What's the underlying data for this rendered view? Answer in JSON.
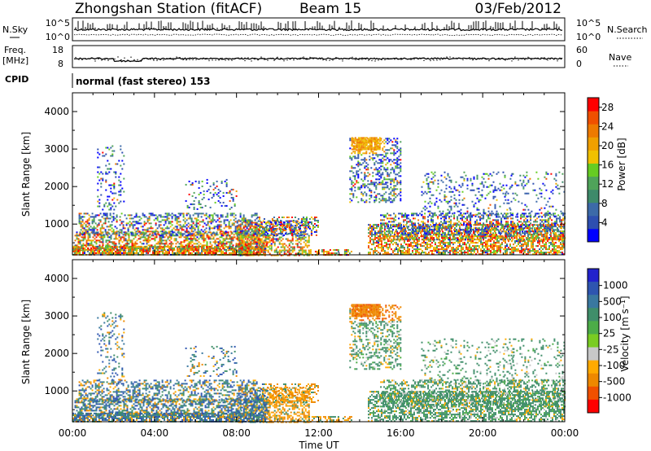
{
  "header": {
    "station": "Zhongshan Station (fitACF)",
    "beam": "Beam 15",
    "date": "03/Feb/2012"
  },
  "params": {
    "nsky_label": "N.Sky",
    "nsearch_label": "N.Search",
    "freq_label": "Freq.",
    "freq_unit": "[MHz]",
    "nave_label": "Nave",
    "cpid_label": "CPID",
    "cpid_value": "normal (fast stereo) 153",
    "nsky_ticks": [
      "10^5",
      "10^0"
    ],
    "nsearch_ticks": [
      "10^5",
      "10^0"
    ],
    "freq_ticks": [
      "18",
      "8"
    ],
    "nave_ticks": [
      "60",
      "0"
    ]
  },
  "colors": {
    "frame": "#000000",
    "power_scale": [
      "#0000ff",
      "#2e4fb0",
      "#3c6aa8",
      "#3e8a6a",
      "#4fa35a",
      "#66cc22",
      "#f0c000",
      "#f0a000",
      "#ee7a00",
      "#f05000",
      "#ff0000"
    ],
    "velocity_scale": [
      "#2222cc",
      "#2e55b0",
      "#3a78a0",
      "#3f8e6a",
      "#4cac48",
      "#7acc22",
      "#c8c8c8",
      "#ffaa00",
      "#ee8800",
      "#f05000",
      "#ff0000"
    ]
  },
  "chart_data": [
    {
      "type": "heatmap",
      "panel": "power",
      "x": [
        "00:00",
        "04:00",
        "08:00",
        "12:00",
        "16:00",
        "20:00",
        "00:00"
      ],
      "ylabel": "Slant Range [km]",
      "y_ticks": [
        "1000",
        "2000",
        "3000",
        "4000"
      ],
      "ylim": [
        180,
        4500
      ],
      "colorbar_label": "Power [dB]",
      "colorbar_ticks": [
        "4",
        "8",
        "12",
        "16",
        "20",
        "24",
        "28"
      ],
      "colorbar_range": [
        0,
        30
      ]
    },
    {
      "type": "heatmap",
      "panel": "velocity",
      "x": [
        "00:00",
        "04:00",
        "08:00",
        "12:00",
        "16:00",
        "20:00",
        "00:00"
      ],
      "xlabel": "Time UT",
      "ylabel": "Slant Range [km]",
      "y_ticks": [
        "1000",
        "2000",
        "3000",
        "4000"
      ],
      "ylim": [
        180,
        4500
      ],
      "colorbar_label": "Velocity [m s⁻¹]",
      "colorbar_ticks": [
        "1000",
        "500",
        "100",
        "25",
        "-25",
        "-100",
        "-500",
        "-1000"
      ]
    }
  ]
}
